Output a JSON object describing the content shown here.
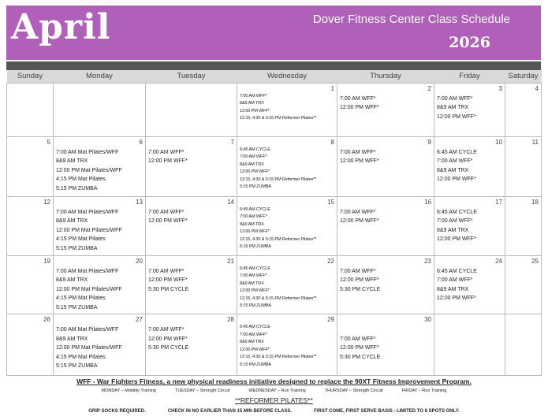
{
  "header": {
    "month": "April",
    "title": "Dover Fitness Center Class Schedule",
    "year": "2026",
    "accent": "#b060b8"
  },
  "weekdays": [
    "Sunday",
    "Monday",
    "Tuesday",
    "Wednesday",
    "Thursday",
    "Friday",
    "Saturday"
  ],
  "weeks": [
    [
      {
        "day": "",
        "events": []
      },
      {
        "day": "",
        "events": []
      },
      {
        "day": "",
        "events": []
      },
      {
        "day": "1",
        "small": true,
        "events": [
          "7:00 AM WFF*",
          "8&9 AM TRX",
          "12:00 PM WFF*",
          "12:15, 4:30 & 5:15 PM Reformer Pilates**"
        ]
      },
      {
        "day": "2",
        "events": [
          "7:00 AM WFF*",
          "12:00 PM WFF*"
        ]
      },
      {
        "day": "3",
        "events": [
          "7:00 AM WFF*",
          "8&9 AM TRX",
          "12:00 PM WFF*"
        ]
      },
      {
        "day": "4",
        "events": []
      }
    ],
    [
      {
        "day": "5",
        "events": []
      },
      {
        "day": "6",
        "events": [
          "7:00 AM Mat Pilates/WFF",
          "8&9 AM TRX",
          "12:00 PM Mat Pilates/WFF",
          "4:15 PM Mat Pilates",
          "5:15 PM ZUMBA"
        ]
      },
      {
        "day": "7",
        "events": [
          "7:00 AM WFF*",
          "12:00 PM WFF*"
        ]
      },
      {
        "day": "8",
        "small": true,
        "events": [
          "6:45 AM CYCLE",
          "7:00 AM WFF*",
          "8&9 AM TRX",
          "12:00 PM WFF*",
          "12:15, 4:30 & 5:15 PM Reformer Pilates**",
          "5:15 PM ZUMBA"
        ]
      },
      {
        "day": "9",
        "events": [
          "7:00 AM WFF*",
          "12:00 PM WFF*"
        ]
      },
      {
        "day": "10",
        "events": [
          "6:45 AM CYCLE",
          "7:00 AM WFF*",
          "8&9 AM TRX",
          "12:00 PM WFF*"
        ]
      },
      {
        "day": "11",
        "events": []
      }
    ],
    [
      {
        "day": "12",
        "events": []
      },
      {
        "day": "13",
        "events": [
          "7:00 AM Mat Pilates/WFF",
          "8&9 AM TRX",
          "12:00 PM Mat Pilates/WFF",
          "4:15 PM Mat Pilates",
          "5:15 PM ZUMBA"
        ]
      },
      {
        "day": "14",
        "events": [
          "7:00 AM WFF*",
          "12:00 PM WFF*"
        ]
      },
      {
        "day": "15",
        "small": true,
        "events": [
          "6:45 AM CYCLE",
          "7:00 AM WFF*",
          "8&9 AM TRX",
          "12:00 PM WFF*",
          "12:15, 4:30 & 5:15 PM Reformer Pilates**",
          "5:15 PM ZUMBA"
        ]
      },
      {
        "day": "16",
        "events": [
          "7:00 AM WFF*",
          "12:00 PM WFF*"
        ]
      },
      {
        "day": "17",
        "events": [
          "6:45 AM CYCLE",
          "7:00 AM WFF*",
          "8&9 AM TRX",
          "12:00 PM WFF*"
        ]
      },
      {
        "day": "18",
        "events": []
      }
    ],
    [
      {
        "day": "19",
        "events": []
      },
      {
        "day": "20",
        "events": [
          "7:00 AM Mat Pilates/WFF",
          "8&9 AM TRX",
          "12:00 PM Mat Pilates/WFF",
          "4:15 PM Mat Pilates",
          "5:15 PM ZUMBA"
        ]
      },
      {
        "day": "21",
        "events": [
          "7:00 AM WFF*",
          "12:00 PM WFF*",
          "5:30 PM CYCLE"
        ]
      },
      {
        "day": "22",
        "small": true,
        "events": [
          "6:45 AM CYCLE",
          "7:00 AM WFF*",
          "8&9 AM TRX",
          "12:00 PM WFF*",
          "12:15, 4:30 & 5:15 PM Reformer Pilates**",
          "5:15 PM ZUMBA"
        ]
      },
      {
        "day": "23",
        "events": [
          "7:00 AM WFF*",
          "12:00 PM WFF*",
          "5:30 PM CYCLE"
        ]
      },
      {
        "day": "24",
        "events": [
          "6:45 AM CYCLE",
          "7:00 AM WFF*",
          "8&9 AM TRX",
          "12:00 PM WFF*"
        ]
      },
      {
        "day": "25",
        "events": []
      }
    ],
    [
      {
        "day": "26",
        "events": []
      },
      {
        "day": "27",
        "events": [
          "7:00 AM Mat Pilates/WFF",
          "8&9 AM TRX",
          "12:00 PM Mat Pilates/WFF",
          "4:15 PM Mat Pilates",
          "5:15 PM ZUMBA"
        ]
      },
      {
        "day": "28",
        "events": [
          "7:00 AM WFF*",
          "12:00 PM WFF*",
          "5:30 PM CYCLE"
        ]
      },
      {
        "day": "29",
        "small": true,
        "events": [
          "6:45 AM CYCLE",
          "7:00 AM WFF*",
          "8&9 AM TRX",
          "12:00 PM WFF*",
          "12:15, 4:30 & 5:15 PM Reformer Pilates**",
          "5:15 PM ZUMBA"
        ]
      },
      {
        "day": "30",
        "events": [
          "",
          "7:00 AM WFF*",
          "12:00 PM WFF*",
          "5:30 PM CYCLE"
        ]
      },
      {
        "day": "",
        "events": []
      },
      {
        "day": "",
        "events": []
      }
    ]
  ],
  "footer": {
    "wff_note": "WFF - War Fighters Fitness, a new physical readiness initiative designed to replace the 90XT Fitness Improvement Program.",
    "wff_days": [
      "MONDAY – Mobility Training",
      "TUESDAY – Strength Circuit",
      "WEDNESDAY – Run Training",
      "THURSDAY – Strength Circuit",
      "FRIDAY – Run Training"
    ],
    "pilates_title": "**REFORMER PILATES**",
    "pilates_rules": [
      "GRIP SOCKS REQUIRED.",
      "CHECK IN NO EARLIER THAN 15 MIN BEFORE CLASS.",
      "FIRST COME, FIRST SERVE BASIS - LIMITED TO 8 SPOTS ONLY."
    ]
  }
}
